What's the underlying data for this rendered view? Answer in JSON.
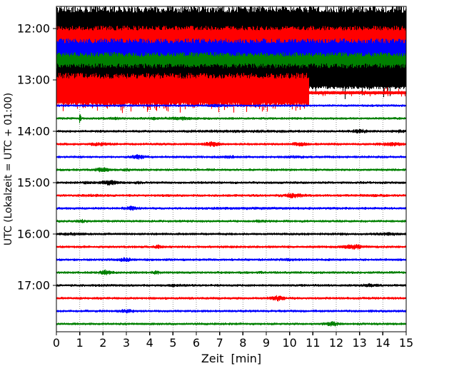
{
  "chart_data": {
    "type": "line",
    "subtype": "helicorder-seismogram",
    "title": "",
    "xlabel": "Zeit  [min]",
    "ylabel": "UTC (Lokalzeit = UTC + 01:00)",
    "x_ticks": [
      0,
      1,
      2,
      3,
      4,
      5,
      6,
      7,
      8,
      9,
      10,
      11,
      12,
      13,
      14,
      15
    ],
    "x_range": [
      0,
      15
    ],
    "minutes_per_line": 15,
    "grid": true,
    "legend": false,
    "y_hour_labels": [
      "12:00",
      "13:00",
      "14:00",
      "15:00",
      "16:00",
      "17:00"
    ],
    "colors": {
      "black": "#000000",
      "red": "#ff0000",
      "blue": "#0000ff",
      "green": "#008000",
      "grid": "#888888",
      "axis": "#000000",
      "background": "#ffffff"
    },
    "traces": [
      {
        "utc": "12:00",
        "color": "black",
        "labeled": true,
        "kind": "saturated",
        "segments": [
          {
            "t0": 0,
            "t1": 15,
            "up": 32,
            "dn": 21
          }
        ],
        "events": []
      },
      {
        "utc": "12:15",
        "color": "red",
        "labeled": false,
        "kind": "saturated",
        "segments": [
          {
            "t0": 0,
            "t1": 15,
            "up": 22,
            "dn": 21
          }
        ],
        "events": []
      },
      {
        "utc": "12:30",
        "color": "blue",
        "labeled": false,
        "kind": "saturated",
        "segments": [
          {
            "t0": 0,
            "t1": 15,
            "up": 22,
            "dn": 21
          }
        ],
        "events": []
      },
      {
        "utc": "12:45",
        "color": "green",
        "labeled": false,
        "kind": "saturated",
        "segments": [
          {
            "t0": 0,
            "t1": 15,
            "up": 21,
            "dn": 20
          }
        ],
        "events": []
      },
      {
        "utc": "13:00",
        "color": "black",
        "labeled": true,
        "kind": "saturated",
        "segments": [
          {
            "t0": 0,
            "t1": 15,
            "up": 23,
            "dn": 13,
            "spike_dn": 15,
            "spike_p": 0.12
          }
        ],
        "events": []
      },
      {
        "utc": "13:15",
        "color": "red",
        "labeled": false,
        "kind": "saturated",
        "segments": [
          {
            "t0": 0,
            "t1": 10.83,
            "up": 28,
            "dn": 20,
            "spike_dn": 9,
            "spike_p": 0.18
          },
          {
            "t0": 10.83,
            "t1": 15,
            "up": 2.4,
            "dn": 2.4,
            "spike_up": 6,
            "spike_dn": 4,
            "spike_p": 0.06
          }
        ],
        "events": []
      },
      {
        "utc": "13:30",
        "color": "blue",
        "labeled": false,
        "kind": "quiet",
        "base": 0.85,
        "events": [
          {
            "t": 6.9,
            "s": 0.25,
            "a": 0.7
          }
        ]
      },
      {
        "utc": "13:45",
        "color": "green",
        "labeled": false,
        "kind": "quiet",
        "base": 0.9,
        "events": [
          {
            "t": 1.0,
            "s": 0.03,
            "a": 6.5
          },
          {
            "t": 2.55,
            "s": 0.2,
            "a": 0.9
          },
          {
            "t": 4.2,
            "s": 0.12,
            "a": 0.8
          },
          {
            "t": 5.3,
            "s": 0.35,
            "a": 1.2
          }
        ]
      },
      {
        "utc": "14:00",
        "color": "black",
        "labeled": true,
        "kind": "quiet",
        "base": 0.95,
        "events": [
          {
            "t": 7.8,
            "s": 1.5,
            "a": 0.45
          },
          {
            "t": 13.0,
            "s": 0.22,
            "a": 1.6
          },
          {
            "t": 14.8,
            "s": 0.2,
            "a": 0.9
          }
        ]
      },
      {
        "utc": "14:15",
        "color": "red",
        "labeled": false,
        "kind": "quiet",
        "base": 0.95,
        "events": [
          {
            "t": 1.8,
            "s": 0.3,
            "a": 1.3
          },
          {
            "t": 6.65,
            "s": 0.22,
            "a": 2.6
          },
          {
            "t": 10.45,
            "s": 0.22,
            "a": 1.7
          },
          {
            "t": 14.35,
            "s": 0.3,
            "a": 1.7
          }
        ]
      },
      {
        "utc": "14:30",
        "color": "blue",
        "labeled": false,
        "kind": "quiet",
        "base": 0.9,
        "events": [
          {
            "t": 3.5,
            "s": 0.18,
            "a": 2.3
          },
          {
            "t": 7.4,
            "s": 0.18,
            "a": 1.1
          },
          {
            "t": 10.2,
            "s": 0.3,
            "a": 0.6
          }
        ]
      },
      {
        "utc": "14:45",
        "color": "green",
        "labeled": false,
        "kind": "quiet",
        "base": 0.9,
        "events": [
          {
            "t": 1.95,
            "s": 0.18,
            "a": 2.3
          },
          {
            "t": 3.0,
            "s": 0.12,
            "a": 0.9
          }
        ]
      },
      {
        "utc": "15:00",
        "color": "black",
        "labeled": true,
        "kind": "quiet",
        "base": 0.95,
        "events": [
          {
            "t": 1.25,
            "s": 0.08,
            "a": 1.1
          },
          {
            "t": 2.25,
            "s": 0.3,
            "a": 2.4
          },
          {
            "t": 3.5,
            "s": 0.1,
            "a": 0.9
          }
        ]
      },
      {
        "utc": "15:15",
        "color": "red",
        "labeled": false,
        "kind": "quiet",
        "base": 0.95,
        "events": [
          {
            "t": 1.5,
            "s": 0.3,
            "a": 0.5
          },
          {
            "t": 10.15,
            "s": 0.28,
            "a": 2.3
          },
          {
            "t": 13.5,
            "s": 0.3,
            "a": 0.5
          }
        ]
      },
      {
        "utc": "15:30",
        "color": "blue",
        "labeled": false,
        "kind": "quiet",
        "base": 0.9,
        "events": [
          {
            "t": 3.2,
            "s": 0.18,
            "a": 2.0
          },
          {
            "t": 9.0,
            "s": 1.5,
            "a": 0.3
          }
        ]
      },
      {
        "utc": "15:45",
        "color": "green",
        "labeled": false,
        "kind": "quiet",
        "base": 0.9,
        "events": [
          {
            "t": 1.05,
            "s": 0.12,
            "a": 1.2
          },
          {
            "t": 8.75,
            "s": 0.15,
            "a": 0.7
          }
        ]
      },
      {
        "utc": "16:00",
        "color": "black",
        "labeled": true,
        "kind": "quiet",
        "base": 0.95,
        "events": [
          {
            "t": 0.6,
            "s": 0.3,
            "a": 0.7
          },
          {
            "t": 14.25,
            "s": 0.25,
            "a": 0.9
          }
        ]
      },
      {
        "utc": "16:15",
        "color": "red",
        "labeled": false,
        "kind": "quiet",
        "base": 0.95,
        "events": [
          {
            "t": 4.35,
            "s": 0.1,
            "a": 1.4
          },
          {
            "t": 12.7,
            "s": 0.28,
            "a": 2.3
          }
        ]
      },
      {
        "utc": "16:30",
        "color": "blue",
        "labeled": false,
        "kind": "quiet",
        "base": 0.9,
        "events": [
          {
            "t": 2.95,
            "s": 0.18,
            "a": 1.9
          },
          {
            "t": 9.9,
            "s": 0.3,
            "a": 0.5
          }
        ]
      },
      {
        "utc": "16:45",
        "color": "green",
        "labeled": false,
        "kind": "quiet",
        "base": 0.9,
        "events": [
          {
            "t": 2.1,
            "s": 0.18,
            "a": 2.3
          },
          {
            "t": 4.25,
            "s": 0.12,
            "a": 1.6
          },
          {
            "t": 8.75,
            "s": 0.12,
            "a": 0.7
          }
        ]
      },
      {
        "utc": "17:00",
        "color": "black",
        "labeled": true,
        "kind": "quiet",
        "base": 0.95,
        "events": [
          {
            "t": 5.0,
            "s": 0.2,
            "a": 0.7
          },
          {
            "t": 13.45,
            "s": 0.2,
            "a": 1.3
          }
        ]
      },
      {
        "utc": "17:15",
        "color": "red",
        "labeled": false,
        "kind": "quiet",
        "base": 0.95,
        "events": [
          {
            "t": 9.45,
            "s": 0.18,
            "a": 2.6
          }
        ]
      },
      {
        "utc": "17:30",
        "color": "blue",
        "labeled": false,
        "kind": "quiet",
        "base": 0.9,
        "events": [
          {
            "t": 3.0,
            "s": 0.2,
            "a": 1.8
          }
        ]
      },
      {
        "utc": "17:45",
        "color": "green",
        "labeled": false,
        "kind": "quiet",
        "base": 0.9,
        "events": [
          {
            "t": 11.8,
            "s": 0.18,
            "a": 2.3
          }
        ]
      }
    ]
  }
}
